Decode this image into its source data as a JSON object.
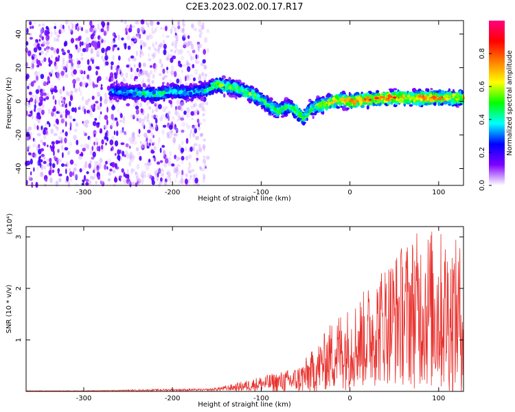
{
  "page_title": "C2E3.2023.002.00.17.R17",
  "chart_data": [
    {
      "type": "heatmap",
      "xlabel": "Height of straight line (km)",
      "ylabel": "Frequency (Hz)",
      "xlim": [
        -365,
        128
      ],
      "ylim": [
        -50,
        48
      ],
      "x_ticks": [
        -300,
        -200,
        -100,
        0,
        100
      ],
      "y_ticks": [
        -40,
        -20,
        0,
        20,
        40
      ],
      "colorbar": {
        "label": "Normalized spectral amplitude",
        "range": [
          0.0,
          1.0
        ],
        "ticks": [
          0.0,
          0.2,
          0.4,
          0.6,
          0.8
        ],
        "colors": [
          "#ffffff",
          "#7f00ff",
          "#0000ff",
          "#00ffff",
          "#00ff00",
          "#ffff00",
          "#ff7f00",
          "#ff0000",
          "#ff0080"
        ]
      },
      "ridge": {
        "x": [
          -270,
          -240,
          -220,
          -200,
          -180,
          -160,
          -150,
          -140,
          -130,
          -120,
          -110,
          -100,
          -90,
          -80,
          -70,
          -60,
          -52,
          -45,
          -38,
          -30,
          -20,
          -10,
          0,
          20,
          40,
          60,
          80,
          100,
          128
        ],
        "y": [
          6,
          5,
          4,
          6,
          5,
          7,
          10,
          9,
          8,
          6,
          4,
          1,
          -3,
          -6,
          -3,
          -6,
          -10,
          -5,
          -3,
          -2,
          0,
          1,
          0,
          1,
          2,
          2,
          2,
          2,
          2
        ],
        "amplitude": [
          0.35,
          0.45,
          0.5,
          0.45,
          0.4,
          0.5,
          0.6,
          0.55,
          0.6,
          0.55,
          0.6,
          0.55,
          0.55,
          0.6,
          0.5,
          0.65,
          0.6,
          0.55,
          0.6,
          0.7,
          0.8,
          0.75,
          0.85,
          0.85,
          0.9,
          0.85,
          0.85,
          0.8,
          0.75
        ]
      },
      "noise_region_x": [
        -365,
        -160
      ]
    },
    {
      "type": "line",
      "xlabel": "Height of straight line (km)",
      "ylabel": "SNR (10 * v/v)",
      "y_multiplier": "(x10⁴)",
      "xlim": [
        -365,
        128
      ],
      "ylim": [
        0,
        3.2
      ],
      "x_ticks": [
        -300,
        -200,
        -100,
        0,
        100
      ],
      "y_ticks": [
        1,
        2,
        3
      ],
      "color": "#e8302c",
      "envelope": {
        "x": [
          -365,
          -300,
          -250,
          -200,
          -160,
          -140,
          -120,
          -100,
          -80,
          -60,
          -50,
          -40,
          -30,
          -20,
          -10,
          0,
          10,
          20,
          30,
          40,
          50,
          60,
          70,
          80,
          90,
          100,
          110,
          120,
          128
        ],
        "base": [
          0.01,
          0.01,
          0.02,
          0.03,
          0.03,
          0.06,
          0.1,
          0.15,
          0.18,
          0.22,
          0.3,
          0.4,
          0.55,
          0.7,
          0.8,
          0.85,
          0.95,
          1.05,
          1.2,
          1.35,
          1.4,
          1.5,
          1.55,
          1.6,
          1.6,
          1.55,
          1.5,
          1.45,
          1.4
        ],
        "spread": [
          0.005,
          0.005,
          0.01,
          0.02,
          0.02,
          0.05,
          0.1,
          0.15,
          0.2,
          0.25,
          0.35,
          0.45,
          0.55,
          0.7,
          0.8,
          0.8,
          0.9,
          1.0,
          1.1,
          1.2,
          1.3,
          1.4,
          1.5,
          1.55,
          1.6,
          1.6,
          1.55,
          1.5,
          1.45
        ]
      },
      "num_samples": 1200
    }
  ]
}
